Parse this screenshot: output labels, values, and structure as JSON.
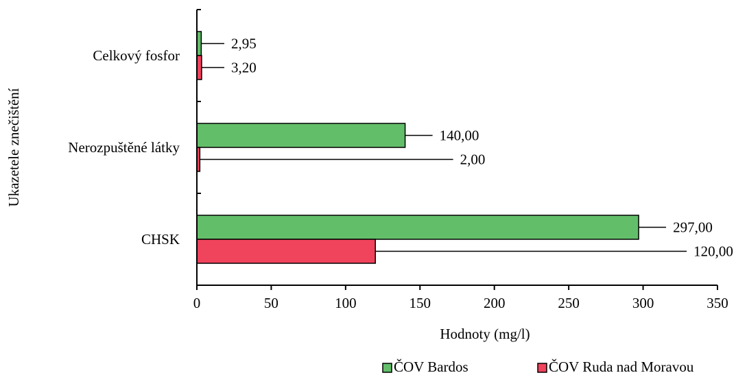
{
  "chart_data": {
    "type": "bar",
    "orientation": "horizontal",
    "categories": [
      "CHSK",
      "Nerozpuštěné látky",
      "Celkový fosfor"
    ],
    "series": [
      {
        "name": "ČOV Bardos",
        "color": "#63BE6A",
        "values": [
          297.0,
          140.0,
          2.95
        ],
        "labels": [
          "297,00",
          "140,00",
          "2,95"
        ]
      },
      {
        "name": "ČOV Ruda nad Moravou",
        "color": "#F0435C",
        "values": [
          120.0,
          2.0,
          3.2
        ],
        "labels": [
          "120,00",
          "2,00",
          "3,20"
        ]
      }
    ],
    "xlabel": "Hodnoty (mg/l)",
    "ylabel": "Ukazetele znečištění",
    "xlim": [
      0,
      350
    ],
    "xticks": [
      0,
      50,
      100,
      150,
      200,
      250,
      300,
      350
    ],
    "grid": false,
    "legend_position": "bottom-right"
  }
}
